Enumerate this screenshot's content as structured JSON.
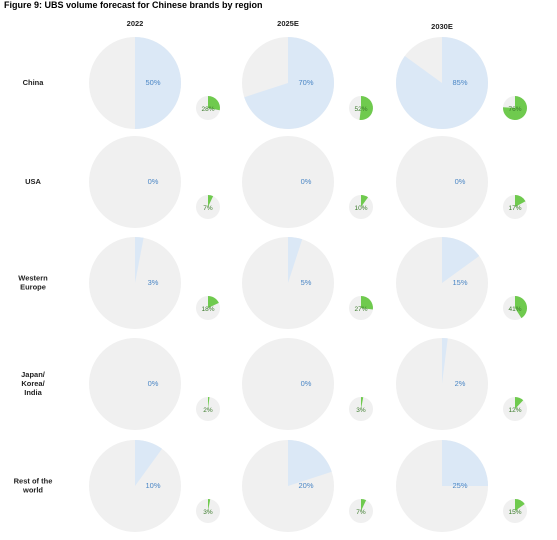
{
  "title": "Figure 9: UBS volume forecast for Chinese brands by region",
  "chart_data": {
    "type": "pie",
    "columns": [
      "2022",
      "2025E",
      "2030E"
    ],
    "rows": [
      {
        "label": [
          "China"
        ],
        "big": [
          50,
          70,
          85
        ],
        "small": [
          28,
          52,
          76
        ]
      },
      {
        "label": [
          "USA"
        ],
        "big": [
          0,
          0,
          0
        ],
        "small": [
          7,
          10,
          17
        ]
      },
      {
        "label": [
          "Western",
          "Europe"
        ],
        "big": [
          3,
          5,
          15
        ],
        "small": [
          18,
          27,
          41
        ]
      },
      {
        "label": [
          "Japan/",
          "Korea/",
          "India"
        ],
        "big": [
          0,
          0,
          2
        ],
        "small": [
          2,
          3,
          12
        ]
      },
      {
        "label": [
          "Rest of the",
          "world"
        ],
        "big": [
          10,
          20,
          25
        ],
        "small": [
          3,
          7,
          15
        ]
      }
    ],
    "colors": {
      "big_fill": "#dbe8f6",
      "big_bg": "#f0f0f0",
      "small_fill": "#6fca4e",
      "small_bg": "#f0f0f0"
    }
  }
}
